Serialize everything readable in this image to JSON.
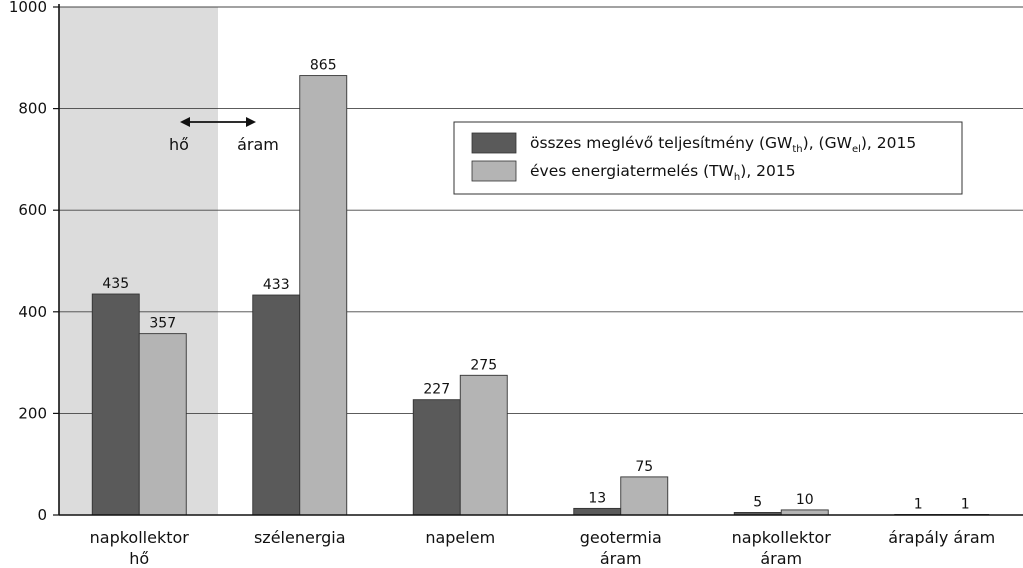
{
  "chart_data": {
    "type": "bar",
    "ylim": [
      0,
      1000
    ],
    "yticks": [
      "0",
      "200",
      "400",
      "600",
      "800",
      "1000"
    ],
    "ytick_values": [
      0,
      200,
      400,
      600,
      800,
      1000
    ],
    "grid": true,
    "legend_position": "top-right",
    "categories": [
      [
        "napkollektor",
        "hő"
      ],
      [
        "szélenergia"
      ],
      [
        "napelem"
      ],
      [
        "geotermia",
        "áram"
      ],
      [
        "napkollektor",
        "áram"
      ],
      [
        "árapály áram"
      ]
    ],
    "series": [
      {
        "name_parts": [
          "összes meglévő teljesítmény (GW",
          "th",
          "), (GW",
          "el",
          "), 2015"
        ],
        "color": "#5a5a5a",
        "values": [
          435,
          433,
          227,
          13,
          5,
          1
        ],
        "labels": [
          "435",
          "433",
          "227",
          "13",
          "5",
          "1"
        ]
      },
      {
        "name_parts": [
          "éves energiatermelés (TW",
          "h",
          "), 2015"
        ],
        "color": "#b4b4b4",
        "values": [
          357,
          865,
          275,
          75,
          10,
          1
        ],
        "labels": [
          "357",
          "865",
          "275",
          "75",
          "10",
          "1"
        ]
      }
    ],
    "annotation": {
      "left": "hő",
      "right": "áram"
    },
    "highlight_color": "#dcdcdc"
  }
}
